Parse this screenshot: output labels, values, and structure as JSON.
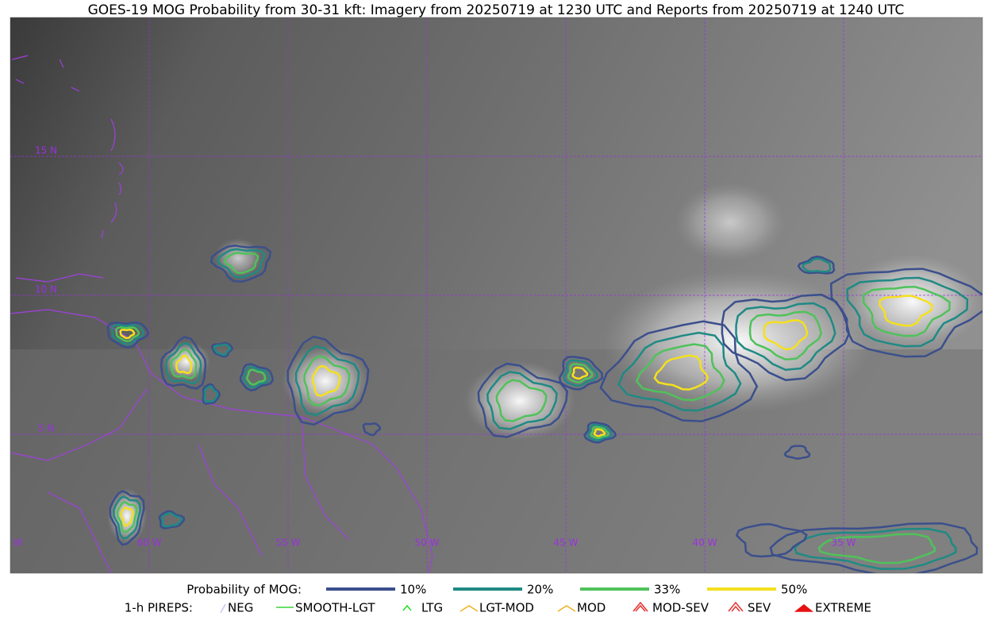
{
  "header": {
    "title": "GOES-19 MOG Probability from 30-31 kft: Imagery from 20250719 at 1230 UTC and Reports from 20250719 at 1240 UTC"
  },
  "map": {
    "lat_labels": [
      "15 N",
      "10 N",
      "5 N"
    ],
    "lon_labels": [
      "65 W",
      "60 W",
      "55 W",
      "50 W",
      "45 W",
      "40 W",
      "35 W"
    ],
    "grid_color": "#9b30e0"
  },
  "legend": {
    "probability": {
      "label": "Probability of MOG:",
      "items": [
        {
          "label": "10%",
          "color": "#3b4f8c"
        },
        {
          "label": "20%",
          "color": "#1f8a84"
        },
        {
          "label": "33%",
          "color": "#4fc25a"
        },
        {
          "label": "50%",
          "color": "#f4e01e"
        }
      ]
    },
    "pireps": {
      "label": "1-h PIREPS:",
      "items": [
        {
          "label": "NEG",
          "color": "#c8c8f0"
        },
        {
          "label": "SMOOTH-LGT",
          "color": "#3ad43a"
        },
        {
          "label": "LTG",
          "color": "#22dd22"
        },
        {
          "label": "LGT-MOD",
          "color": "#f0b020"
        },
        {
          "label": "MOD",
          "color": "#f0b020"
        },
        {
          "label": "MOD-SEV",
          "color": "#e83030"
        },
        {
          "label": "SEV",
          "color": "#e83030"
        },
        {
          "label": "EXTREME",
          "color": "#e81010"
        }
      ]
    }
  }
}
